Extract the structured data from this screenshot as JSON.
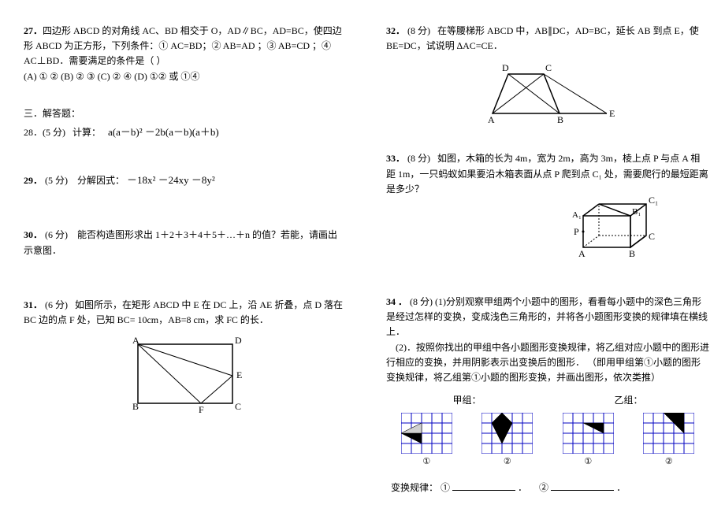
{
  "left": {
    "q27": {
      "num": "27．",
      "text": "四边形 ABCD 的对角线 AC、BD 相交于 O，AD∥BC，AD=BC，使四边形 ABCD 为正方形，下列条件：① AC=BD；② AB=AD ；③ AB=CD ；④ AC⊥BD．需要满足的条件是（    ）",
      "options": "(A) ① ②        (B) ② ③       (C) ② ④     (D) ①② 或 ①④"
    },
    "section3": "三．解答题：",
    "q28": {
      "num": "28．(5 分)",
      "label": "计算：",
      "formula": "a(a－b)² －2b(a－b)(a＋b)"
    },
    "q29": {
      "num": "29．",
      "pts": "(5 分)",
      "label": "分解因式：",
      "formula": "－18x² －24xy －8y²"
    },
    "q30": {
      "num": "30．",
      "pts": "(6 分)",
      "text": "能否构造图形求出 1＋2＋3＋4＋5＋…＋n 的值？若能，请画出示意图．"
    },
    "q31": {
      "num": "31．",
      "pts": "(6 分)",
      "text": "如图所示，在矩形 ABCD 中 E 在 DC 上，沿 AE 折叠，点 D 落在 BC 边的点 F 处，已知 BC= 10cm，AB=8 cm，求 FC 的长．",
      "labels": {
        "A": "A",
        "B": "B",
        "C": "C",
        "D": "D",
        "E": "E",
        "F": "F"
      }
    }
  },
  "right": {
    "q32": {
      "num": "32．",
      "pts": "(8 分)",
      "text": "在等腰梯形 ABCD 中，AB∥DC，AD=BC，延长 AB 到点 E，使 BE=DC，试说明 ∆AC=CE．",
      "labels": {
        "A": "A",
        "B": "B",
        "C": "C",
        "D": "D",
        "E": "E"
      }
    },
    "q33": {
      "num": "33．",
      "pts": "(8 分)",
      "text": "如图，木箱的长为 4m，宽为 2m，高为 3m，棱上点 P 与点 A 相距 1m，一只蚂蚁如果要沿木箱表面从点 P 爬到点 C₁ 处，需要爬行的最短距离是多少？",
      "labels": {
        "A": "A",
        "B": "B",
        "C": "C",
        "P": "P",
        "A1": "A₁",
        "B1": "B₁",
        "C1": "C₁"
      }
    },
    "q34": {
      "num": "34 ．",
      "pts": "(8 分)",
      "text1": "(1)分别观察甲组两个小题中的图形，看看每小题中的深色三角形是经过怎样的变换，变成浅色三角形的，并将各小题图形变换的规律填在横线上．",
      "text2": "(2)．按照你找出的甲组中各小题图形变换规律，将乙组对应小题中的图形进行相应的变换，并用阴影表示出变换后的图形．  （即用甲组第①小题的图形变换规律，将乙组第①小题的图形变换，并画出图形，依次类推）",
      "group_a": "甲组：",
      "group_b": "乙组：",
      "circ1": "①",
      "circ2": "②",
      "rule_label": "变换规律：",
      "period": "．",
      "grid": {
        "cell": 13,
        "cols": 5,
        "rows": 4,
        "stroke": "#0000c0",
        "fill_dark": "#000000",
        "fill_light": "#d0d0d0"
      }
    }
  }
}
